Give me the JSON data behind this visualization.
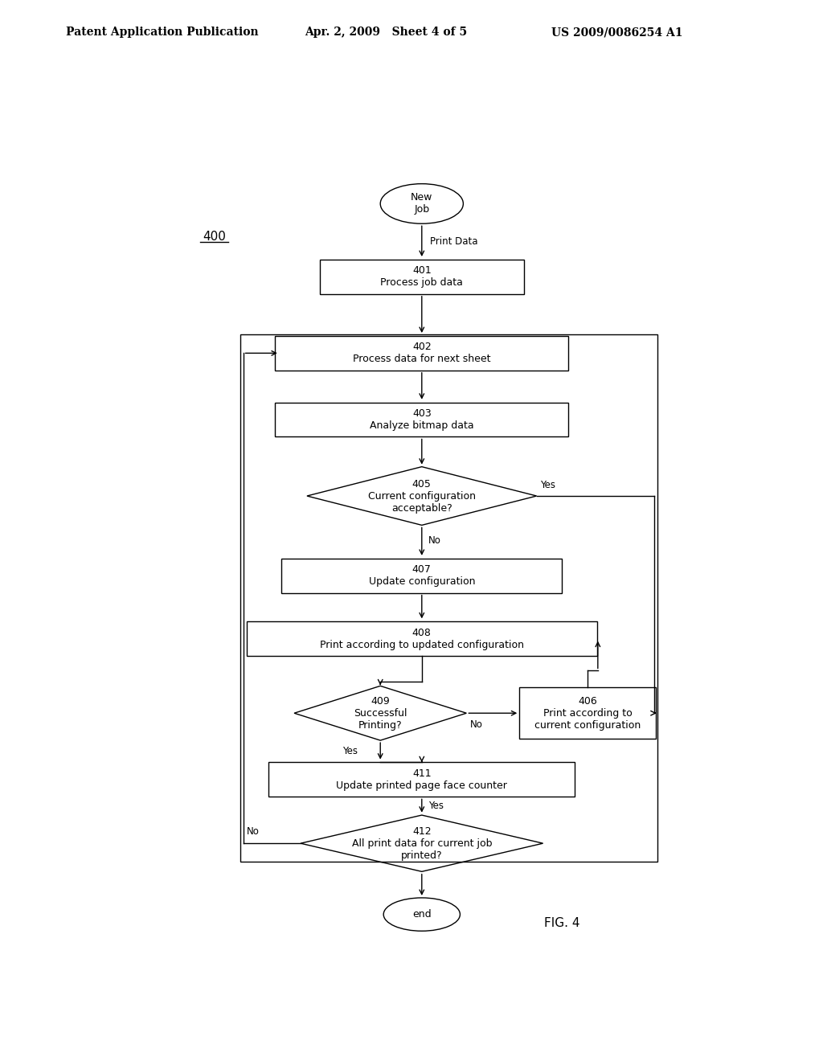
{
  "title_left": "Patent Application Publication",
  "title_mid": "Apr. 2, 2009   Sheet 4 of 5",
  "title_right": "US 2009/0086254 A1",
  "fig_label": "FIG. 4",
  "diagram_label": "400",
  "bg_color": "#ffffff"
}
